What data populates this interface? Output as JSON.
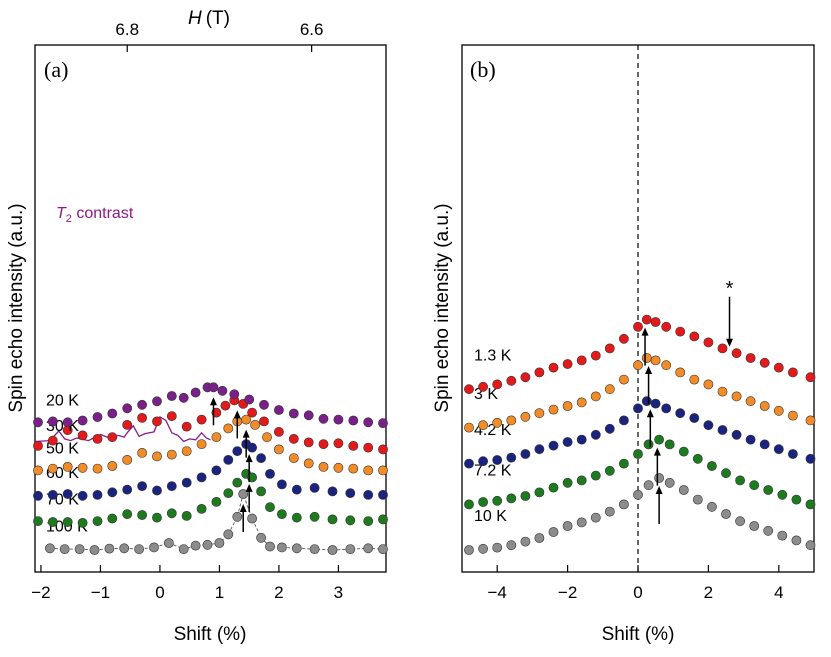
{
  "chart_data": [
    {
      "panel": "(a)",
      "type": "scatter",
      "xlabel": "Shift (%)",
      "ylabel": "Spin echo intensity (a.u.)",
      "xlim": [
        -2.1,
        3.8
      ],
      "xticks": [
        -2,
        -1,
        0,
        1,
        2,
        3
      ],
      "top_axis": {
        "label": "H (T)",
        "label_italic": "H",
        "label_unit": "(T)",
        "ticks": [
          {
            "label": "6.8",
            "shift": -0.55
          },
          {
            "label": "6.6",
            "shift": 2.55
          }
        ]
      },
      "annotation": {
        "text_italic": "T",
        "subscript": "2",
        "text_rest": " contrast",
        "color": "#8b1a8b"
      },
      "t2_contrast": {
        "offset": 6.2,
        "x": [
          -2.1,
          -1.85,
          -1.7,
          -1.6,
          -1.5,
          -1.4,
          -1.2,
          -1.0,
          -0.85,
          -0.7,
          -0.6,
          -0.55,
          -0.45,
          -0.35,
          -0.25,
          -0.1,
          0.0,
          0.1,
          0.2,
          0.3,
          0.4,
          0.5,
          0.6,
          0.7,
          0.78,
          0.85
        ],
        "y": [
          0.0,
          0.05,
          0.6,
          0.15,
          0.05,
          0.2,
          0.05,
          0.4,
          0.2,
          0.35,
          0.25,
          0.5,
          0.9,
          0.3,
          0.45,
          0.55,
          1.4,
          1.2,
          0.5,
          0.35,
          0.0,
          0.15,
          0.1,
          0.5,
          0.2,
          0.1
        ]
      },
      "series": [
        {
          "name": "100 K",
          "color": "#8c8c8c",
          "offset": 0.0,
          "arrow": 1.4,
          "peak": 1.4,
          "width": 0.16,
          "amp": 3.2,
          "connected": true,
          "x": [
            -1.85,
            -1.6,
            -1.35,
            -1.1,
            -0.85,
            -0.6,
            -0.35,
            -0.1,
            0.15,
            0.4,
            0.6,
            0.8,
            1.0,
            1.15,
            1.3,
            1.4,
            1.55,
            1.7,
            1.85,
            2.05,
            2.3,
            2.6,
            2.9,
            3.2,
            3.5,
            3.75
          ],
          "y": [
            0.1,
            0.05,
            0.05,
            0.0,
            0.08,
            0.1,
            0.05,
            0.15,
            0.4,
            0.05,
            0.25,
            0.3,
            0.4,
            0.9,
            1.9,
            3.2,
            1.8,
            0.7,
            0.2,
            0.15,
            0.1,
            0.05,
            0.0,
            0.05,
            0.1,
            0.05
          ]
        },
        {
          "name": "70 K",
          "color": "#1e7a1e",
          "offset": 1.55,
          "arrow": 1.5,
          "peak": 1.5,
          "width": 0.2,
          "amp": 2.8,
          "x": [
            -2.05,
            -1.8,
            -1.55,
            -1.3,
            -1.05,
            -0.8,
            -0.55,
            -0.3,
            -0.05,
            0.2,
            0.45,
            0.7,
            0.95,
            1.15,
            1.3,
            1.45,
            1.55,
            1.7,
            1.85,
            2.05,
            2.3,
            2.6,
            2.9,
            3.2,
            3.5,
            3.75
          ],
          "y": [
            0.1,
            0.05,
            0.05,
            0.0,
            0.1,
            0.25,
            0.5,
            0.45,
            0.3,
            0.55,
            0.4,
            0.8,
            1.2,
            1.7,
            2.3,
            2.8,
            2.6,
            1.8,
            0.9,
            0.5,
            0.3,
            0.35,
            0.2,
            0.15,
            0.1,
            0.2
          ]
        },
        {
          "name": "60 K",
          "color": "#1a237e",
          "offset": 3.05,
          "arrow": 1.5,
          "peak": 1.5,
          "width": 0.25,
          "amp": 3.0,
          "x": [
            -2.05,
            -1.8,
            -1.55,
            -1.3,
            -1.05,
            -0.8,
            -0.55,
            -0.3,
            -0.05,
            0.2,
            0.45,
            0.7,
            0.95,
            1.15,
            1.3,
            1.45,
            1.55,
            1.7,
            1.85,
            2.05,
            2.3,
            2.6,
            2.9,
            3.2,
            3.5,
            3.75
          ],
          "y": [
            0.05,
            0.1,
            0.15,
            0.05,
            0.1,
            0.25,
            0.4,
            0.6,
            0.35,
            0.6,
            0.8,
            1.1,
            1.5,
            2.1,
            2.6,
            3.0,
            2.8,
            2.2,
            1.3,
            0.7,
            0.4,
            0.5,
            0.3,
            0.2,
            0.1,
            0.1
          ]
        },
        {
          "name": "50 K",
          "color": "#f28c28",
          "offset": 4.45,
          "arrow": 1.45,
          "peak": 1.45,
          "width": 0.35,
          "amp": 3.0,
          "x": [
            -2.05,
            -1.8,
            -1.55,
            -1.3,
            -1.05,
            -0.8,
            -0.55,
            -0.3,
            -0.05,
            0.2,
            0.45,
            0.7,
            0.95,
            1.15,
            1.3,
            1.45,
            1.6,
            1.8,
            2.0,
            2.25,
            2.5,
            2.75,
            3.0,
            3.25,
            3.5,
            3.75
          ],
          "y": [
            0.1,
            0.2,
            0.3,
            0.25,
            0.2,
            0.35,
            0.7,
            1.1,
            0.9,
            1.0,
            1.2,
            1.6,
            2.0,
            2.5,
            2.9,
            3.0,
            2.7,
            2.0,
            1.3,
            0.8,
            0.5,
            0.3,
            0.25,
            0.2,
            0.1,
            0.1
          ]
        },
        {
          "name": "30 K",
          "color": "#e31a1c",
          "offset": 5.75,
          "arrow": 1.3,
          "peak": 1.3,
          "width": 0.4,
          "amp": 2.8,
          "x": [
            -2.05,
            -1.8,
            -1.55,
            -1.3,
            -1.05,
            -0.8,
            -0.55,
            -0.3,
            -0.05,
            0.2,
            0.45,
            0.7,
            0.95,
            1.1,
            1.25,
            1.4,
            1.55,
            1.75,
            2.0,
            2.25,
            2.5,
            2.75,
            3.0,
            3.25,
            3.5,
            3.75
          ],
          "y": [
            0.2,
            0.5,
            1.1,
            0.8,
            0.6,
            0.7,
            1.4,
            1.8,
            1.6,
            1.9,
            1.3,
            1.7,
            2.1,
            2.5,
            2.8,
            2.6,
            2.1,
            1.6,
            1.0,
            0.6,
            0.4,
            0.3,
            0.35,
            0.2,
            0.1,
            0.0
          ]
        },
        {
          "name": "20 K",
          "color": "#7b1f8a",
          "offset": 7.2,
          "arrow": 0.9,
          "peak": 0.85,
          "width": 0.5,
          "amp": 2.1,
          "x": [
            -2.05,
            -1.8,
            -1.55,
            -1.3,
            -1.05,
            -0.8,
            -0.55,
            -0.3,
            -0.05,
            0.2,
            0.4,
            0.6,
            0.8,
            0.9,
            1.05,
            1.25,
            1.5,
            1.75,
            2.0,
            2.25,
            2.5,
            2.75,
            3.0,
            3.25,
            3.5,
            3.75
          ],
          "y": [
            0.1,
            0.15,
            0.1,
            0.2,
            0.4,
            0.6,
            0.9,
            1.1,
            1.3,
            1.6,
            1.5,
            1.8,
            2.1,
            2.1,
            1.9,
            1.7,
            1.4,
            1.1,
            0.8,
            0.6,
            0.5,
            0.3,
            0.25,
            0.2,
            0.1,
            0.05
          ]
        }
      ]
    },
    {
      "panel": "(b)",
      "type": "scatter",
      "xlabel": "Shift (%)",
      "ylabel": "Spin echo intensity (a.u.)",
      "xlim": [
        -5,
        5
      ],
      "xticks": [
        -4,
        -2,
        0,
        2,
        4
      ],
      "zero_line": 0,
      "star": {
        "text": "*",
        "shift": 2.6
      },
      "series": [
        {
          "name": "10 K",
          "color": "#8c8c8c",
          "offset": 0.0,
          "arrow": 0.6,
          "x": [
            -4.8,
            -4.4,
            -4.0,
            -3.6,
            -3.2,
            -2.8,
            -2.4,
            -2.0,
            -1.6,
            -1.2,
            -0.8,
            -0.4,
            0.0,
            0.3,
            0.6,
            0.9,
            1.3,
            1.7,
            2.1,
            2.5,
            2.9,
            3.3,
            3.7,
            4.1,
            4.5,
            4.9
          ],
          "y": [
            0.0,
            0.05,
            0.1,
            0.2,
            0.35,
            0.5,
            0.75,
            1.0,
            1.15,
            1.35,
            1.6,
            1.9,
            2.3,
            2.7,
            3.0,
            2.8,
            2.5,
            2.1,
            1.8,
            1.5,
            1.2,
            1.0,
            0.8,
            0.6,
            0.4,
            0.2
          ]
        },
        {
          "name": "7.2 K",
          "color": "#1e7a1e",
          "offset": 1.9,
          "arrow": 0.55,
          "x": [
            -4.8,
            -4.4,
            -4.0,
            -3.6,
            -3.2,
            -2.8,
            -2.4,
            -2.0,
            -1.6,
            -1.2,
            -0.8,
            -0.4,
            0.0,
            0.3,
            0.6,
            0.9,
            1.3,
            1.7,
            2.1,
            2.5,
            2.9,
            3.3,
            3.7,
            4.1,
            4.5,
            4.9
          ],
          "y": [
            0.0,
            0.1,
            0.15,
            0.25,
            0.35,
            0.5,
            0.7,
            0.9,
            1.0,
            1.2,
            1.4,
            1.7,
            2.1,
            2.5,
            2.7,
            2.5,
            2.2,
            1.9,
            1.6,
            1.3,
            1.0,
            0.8,
            0.6,
            0.4,
            0.2,
            0.0
          ]
        },
        {
          "name": "4.2 K",
          "color": "#1a237e",
          "offset": 3.6,
          "arrow": 0.35,
          "x": [
            -4.8,
            -4.4,
            -4.0,
            -3.6,
            -3.2,
            -2.8,
            -2.4,
            -2.0,
            -1.6,
            -1.2,
            -0.8,
            -0.4,
            0.0,
            0.25,
            0.5,
            0.8,
            1.2,
            1.6,
            2.0,
            2.4,
            2.8,
            3.2,
            3.6,
            4.0,
            4.4,
            4.9
          ],
          "y": [
            0.0,
            0.1,
            0.15,
            0.25,
            0.4,
            0.6,
            0.75,
            0.9,
            1.0,
            1.2,
            1.45,
            1.8,
            2.3,
            2.6,
            2.5,
            2.3,
            2.1,
            1.9,
            1.6,
            1.4,
            1.2,
            1.0,
            0.8,
            0.6,
            0.4,
            0.2
          ]
        },
        {
          "name": "3 K",
          "color": "#f28c28",
          "offset": 5.1,
          "arrow": 0.3,
          "x": [
            -4.8,
            -4.4,
            -4.0,
            -3.6,
            -3.2,
            -2.8,
            -2.4,
            -2.0,
            -1.6,
            -1.2,
            -0.8,
            -0.4,
            0.0,
            0.25,
            0.5,
            0.8,
            1.2,
            1.6,
            2.0,
            2.4,
            2.8,
            3.2,
            3.6,
            4.0,
            4.4,
            4.9
          ],
          "y": [
            0.0,
            0.1,
            0.2,
            0.3,
            0.45,
            0.6,
            0.75,
            0.9,
            1.05,
            1.3,
            1.6,
            2.0,
            2.6,
            2.9,
            2.8,
            2.6,
            2.3,
            2.0,
            1.8,
            1.5,
            1.3,
            1.1,
            0.9,
            0.7,
            0.5,
            0.3
          ]
        },
        {
          "name": "1.3 K",
          "color": "#e31a1c",
          "offset": 6.7,
          "arrow": 0.2,
          "x": [
            -4.8,
            -4.4,
            -4.0,
            -3.6,
            -3.2,
            -2.8,
            -2.4,
            -2.0,
            -1.6,
            -1.2,
            -0.8,
            -0.4,
            0.0,
            0.25,
            0.5,
            0.8,
            1.2,
            1.6,
            2.0,
            2.4,
            2.8,
            3.2,
            3.6,
            4.0,
            4.4,
            4.9
          ],
          "y": [
            0.0,
            0.1,
            0.2,
            0.35,
            0.5,
            0.7,
            0.9,
            1.05,
            1.2,
            1.4,
            1.7,
            2.1,
            2.6,
            2.9,
            2.8,
            2.6,
            2.4,
            2.2,
            1.95,
            1.7,
            1.5,
            1.3,
            1.1,
            0.9,
            0.7,
            0.5
          ]
        }
      ]
    }
  ]
}
